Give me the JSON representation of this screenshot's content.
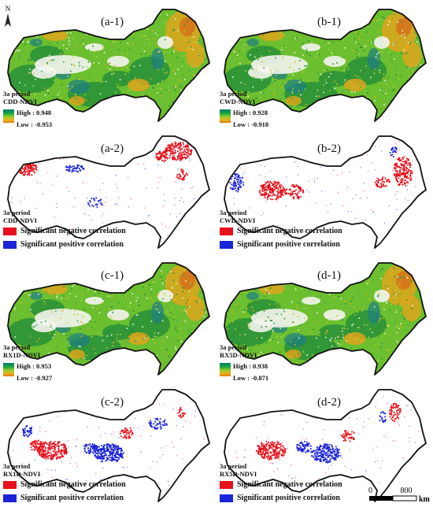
{
  "north_label": "N",
  "scale": {
    "zero": "0",
    "value": "800",
    "unit": "km"
  },
  "colors": {
    "negative": "#e8101a",
    "positive": "#1a24d8",
    "ramp_high": "#0a7f6a",
    "ramp_mid": "#9acb2a",
    "ramp_low": "#e07a10"
  },
  "panels": [
    {
      "id": "a-1",
      "label": "(a-1)",
      "kind": "continuous",
      "period": "3a period",
      "index": "CDD-NDVI",
      "high": "High : 0.948",
      "low": "Low : -0.953"
    },
    {
      "id": "b-1",
      "label": "(b-1)",
      "kind": "continuous",
      "period": "3a period",
      "index": "CWD-NDVI",
      "high": "High : 0.928",
      "low": "Low : -0.918"
    },
    {
      "id": "a-2",
      "label": "(a-2)",
      "kind": "significance",
      "period": "3a period",
      "index": "CDD-NDVI",
      "neg": "Significant negative correlation",
      "pos": "Significant positive correlation"
    },
    {
      "id": "b-2",
      "label": "(b-2)",
      "kind": "significance",
      "period": "3a period",
      "index": "CWD-NDVI",
      "neg": "Significant negative correlation",
      "pos": "Significant positive correlation"
    },
    {
      "id": "c-1",
      "label": "(c-1)",
      "kind": "continuous",
      "period": "3a period",
      "index": "RX1D-NDVI",
      "high": "High : 0.953",
      "low": "Low : -0.927"
    },
    {
      "id": "d-1",
      "label": "(d-1)",
      "kind": "continuous",
      "period": "3a period",
      "index": "RX5D-NDVI",
      "high": "High : 0.938",
      "low": "Low : -0.871"
    },
    {
      "id": "c-2",
      "label": "(c-2)",
      "kind": "significance",
      "period": "3a period",
      "index": "RX1D-NDVI",
      "neg": "Significant negative correlation",
      "pos": "Significant positive correlation"
    },
    {
      "id": "d-2",
      "label": "(d-2)",
      "kind": "significance",
      "period": "3a period",
      "index": "RX5D-NDVI",
      "neg": "Significant negative correlation",
      "pos": "Significant positive correlation"
    }
  ]
}
